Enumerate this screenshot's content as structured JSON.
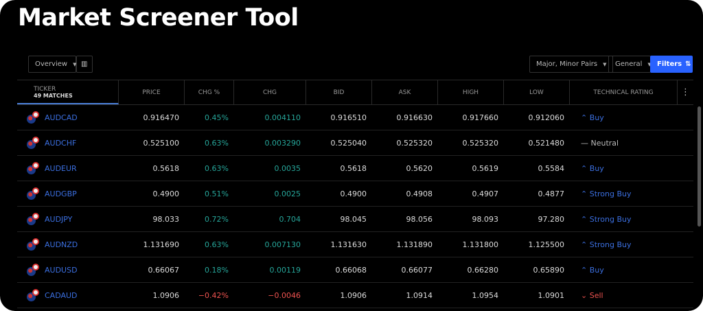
{
  "title": "Market Screener Tool",
  "toolbar": {
    "overview": "Overview",
    "pairs": "Major, Minor Pairs",
    "general": "General",
    "filters": "Filters"
  },
  "columns": {
    "ticker": "TICKER",
    "matches": "49 MATCHES",
    "price": "PRICE",
    "chgp": "CHG %",
    "chg": "CHG",
    "bid": "BID",
    "ask": "ASK",
    "high": "HIGH",
    "low": "LOW",
    "rating": "TECHNICAL RATING"
  },
  "rows": [
    {
      "t": "AUDCAD",
      "price": "0.916470",
      "chgp": "0.45%",
      "chg": "0.004110",
      "bid": "0.916510",
      "ask": "0.916630",
      "high": "0.917660",
      "low": "0.912060",
      "rating": "⌃ Buy",
      "dir": "up",
      "r": "b"
    },
    {
      "t": "AUDCHF",
      "price": "0.525100",
      "chgp": "0.63%",
      "chg": "0.003290",
      "bid": "0.525040",
      "ask": "0.525320",
      "high": "0.525320",
      "low": "0.521480",
      "rating": "— Neutral",
      "dir": "up",
      "r": "n"
    },
    {
      "t": "AUDEUR",
      "price": "0.5618",
      "chgp": "0.63%",
      "chg": "0.0035",
      "bid": "0.5618",
      "ask": "0.5620",
      "high": "0.5619",
      "low": "0.5584",
      "rating": "⌃ Buy",
      "dir": "up",
      "r": "b"
    },
    {
      "t": "AUDGBP",
      "price": "0.4900",
      "chgp": "0.51%",
      "chg": "0.0025",
      "bid": "0.4900",
      "ask": "0.4908",
      "high": "0.4907",
      "low": "0.4877",
      "rating": "⌃ Strong Buy",
      "dir": "up",
      "r": "b"
    },
    {
      "t": "AUDJPY",
      "price": "98.033",
      "chgp": "0.72%",
      "chg": "0.704",
      "bid": "98.045",
      "ask": "98.056",
      "high": "98.093",
      "low": "97.280",
      "rating": "⌃ Strong Buy",
      "dir": "up",
      "r": "b"
    },
    {
      "t": "AUDNZD",
      "price": "1.131690",
      "chgp": "0.63%",
      "chg": "0.007130",
      "bid": "1.131630",
      "ask": "1.131890",
      "high": "1.131800",
      "low": "1.125500",
      "rating": "⌃ Strong Buy",
      "dir": "up",
      "r": "b"
    },
    {
      "t": "AUDUSD",
      "price": "0.66067",
      "chgp": "0.18%",
      "chg": "0.00119",
      "bid": "0.66068",
      "ask": "0.66077",
      "high": "0.66280",
      "low": "0.65890",
      "rating": "⌃ Buy",
      "dir": "up",
      "r": "b"
    },
    {
      "t": "CADAUD",
      "price": "1.0906",
      "chgp": "−0.42%",
      "chg": "−0.0046",
      "bid": "1.0906",
      "ask": "1.0914",
      "high": "1.0954",
      "low": "1.0901",
      "rating": "⌄ Sell",
      "dir": "dn",
      "r": "s"
    }
  ]
}
